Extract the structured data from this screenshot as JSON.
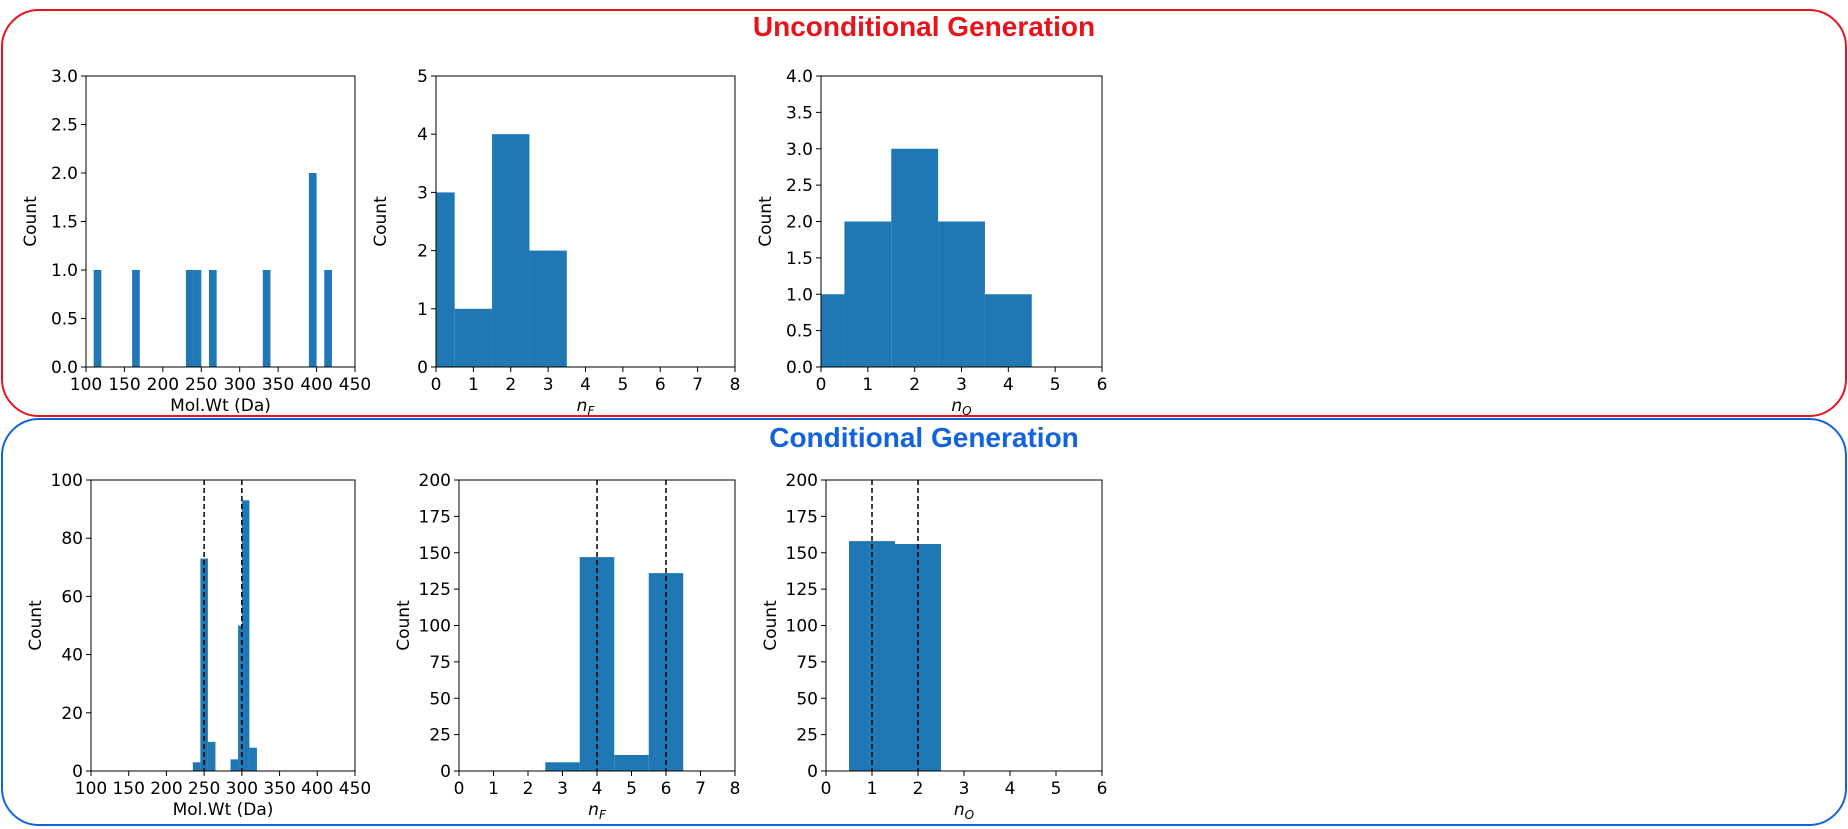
{
  "panels": [
    {
      "title": "Unconditional Generation",
      "color": "#e8141c"
    },
    {
      "title": "Conditional Generation",
      "color": "#1363df"
    }
  ],
  "bar_color": "#1f77b4",
  "chart_data": [
    {
      "type": "bar",
      "group": "Unconditional Generation",
      "xlabel": "Mol.Wt (Da)",
      "ylabel": "Count",
      "xlim": [
        100,
        450
      ],
      "ylim": [
        0,
        3.0
      ],
      "xticks": [
        "100",
        "150",
        "200",
        "250",
        "300",
        "350",
        "400",
        "450"
      ],
      "yticks": [
        "0.0",
        "0.5",
        "1.0",
        "1.5",
        "2.0",
        "2.5",
        "3.0"
      ],
      "bars": [
        {
          "x0": 110,
          "x1": 120,
          "y": 1
        },
        {
          "x0": 160,
          "x1": 170,
          "y": 1
        },
        {
          "x0": 230,
          "x1": 240,
          "y": 1
        },
        {
          "x0": 240,
          "x1": 250,
          "y": 1
        },
        {
          "x0": 260,
          "x1": 270,
          "y": 1
        },
        {
          "x0": 330,
          "x1": 340,
          "y": 1
        },
        {
          "x0": 390,
          "x1": 400,
          "y": 2
        },
        {
          "x0": 410,
          "x1": 420,
          "y": 1
        }
      ],
      "vlines": []
    },
    {
      "type": "bar",
      "group": "Unconditional Generation",
      "xlabel": "nF",
      "ylabel": "Count",
      "xlim": [
        0,
        8
      ],
      "ylim": [
        0,
        5
      ],
      "xticks": [
        "0",
        "1",
        "2",
        "3",
        "4",
        "5",
        "6",
        "7",
        "8"
      ],
      "yticks": [
        "0",
        "1",
        "2",
        "3",
        "4",
        "5"
      ],
      "bars": [
        {
          "x0": 0,
          "x1": 0.5,
          "y": 3
        },
        {
          "x0": 0.5,
          "x1": 1.5,
          "y": 1
        },
        {
          "x0": 1.5,
          "x1": 2.5,
          "y": 4
        },
        {
          "x0": 2.5,
          "x1": 3.5,
          "y": 2
        }
      ],
      "vlines": []
    },
    {
      "type": "bar",
      "group": "Unconditional Generation",
      "xlabel": "nO",
      "ylabel": "Count",
      "xlim": [
        0,
        6
      ],
      "ylim": [
        0,
        4.0
      ],
      "xticks": [
        "0",
        "1",
        "2",
        "3",
        "4",
        "5",
        "6"
      ],
      "yticks": [
        "0.0",
        "0.5",
        "1.0",
        "1.5",
        "2.0",
        "2.5",
        "3.0",
        "3.5",
        "4.0"
      ],
      "bars": [
        {
          "x0": 0,
          "x1": 0.5,
          "y": 1
        },
        {
          "x0": 0.5,
          "x1": 1.5,
          "y": 2
        },
        {
          "x0": 1.5,
          "x1": 2.5,
          "y": 3
        },
        {
          "x0": 2.5,
          "x1": 3.5,
          "y": 2
        },
        {
          "x0": 3.5,
          "x1": 4.5,
          "y": 1
        }
      ],
      "vlines": []
    },
    {
      "type": "bar",
      "group": "Conditional Generation",
      "xlabel": "Mol.Wt (Da)",
      "ylabel": "Count",
      "xlim": [
        100,
        450
      ],
      "ylim": [
        0,
        100
      ],
      "xticks": [
        "100",
        "150",
        "200",
        "250",
        "300",
        "350",
        "400",
        "450"
      ],
      "yticks": [
        "0",
        "20",
        "40",
        "60",
        "80",
        "100"
      ],
      "bars": [
        {
          "x0": 235,
          "x1": 245,
          "y": 3
        },
        {
          "x0": 245,
          "x1": 255,
          "y": 73
        },
        {
          "x0": 255,
          "x1": 265,
          "y": 10
        },
        {
          "x0": 285,
          "x1": 295,
          "y": 4
        },
        {
          "x0": 295,
          "x1": 300,
          "y": 50
        },
        {
          "x0": 300,
          "x1": 310,
          "y": 93
        },
        {
          "x0": 310,
          "x1": 320,
          "y": 8
        }
      ],
      "vlines": [
        250,
        300
      ]
    },
    {
      "type": "bar",
      "group": "Conditional Generation",
      "xlabel": "nF",
      "ylabel": "Count",
      "xlim": [
        0,
        8
      ],
      "ylim": [
        0,
        200
      ],
      "xticks": [
        "0",
        "1",
        "2",
        "3",
        "4",
        "5",
        "6",
        "7",
        "8"
      ],
      "yticks": [
        "0",
        "25",
        "50",
        "75",
        "100",
        "125",
        "150",
        "175",
        "200"
      ],
      "bars": [
        {
          "x0": 2.5,
          "x1": 3.5,
          "y": 6
        },
        {
          "x0": 3.5,
          "x1": 4.5,
          "y": 147
        },
        {
          "x0": 4.5,
          "x1": 5.5,
          "y": 11
        },
        {
          "x0": 5.5,
          "x1": 6.5,
          "y": 136
        }
      ],
      "vlines": [
        4,
        6
      ]
    },
    {
      "type": "bar",
      "group": "Conditional Generation",
      "xlabel": "nO",
      "ylabel": "Count",
      "xlim": [
        0,
        6
      ],
      "ylim": [
        0,
        200
      ],
      "xticks": [
        "0",
        "1",
        "2",
        "3",
        "4",
        "5",
        "6"
      ],
      "yticks": [
        "0",
        "25",
        "50",
        "75",
        "100",
        "125",
        "150",
        "175",
        "200"
      ],
      "bars": [
        {
          "x0": 0.5,
          "x1": 1.5,
          "y": 158
        },
        {
          "x0": 1.5,
          "x1": 2.5,
          "y": 156
        }
      ],
      "vlines": [
        1,
        2
      ]
    }
  ]
}
